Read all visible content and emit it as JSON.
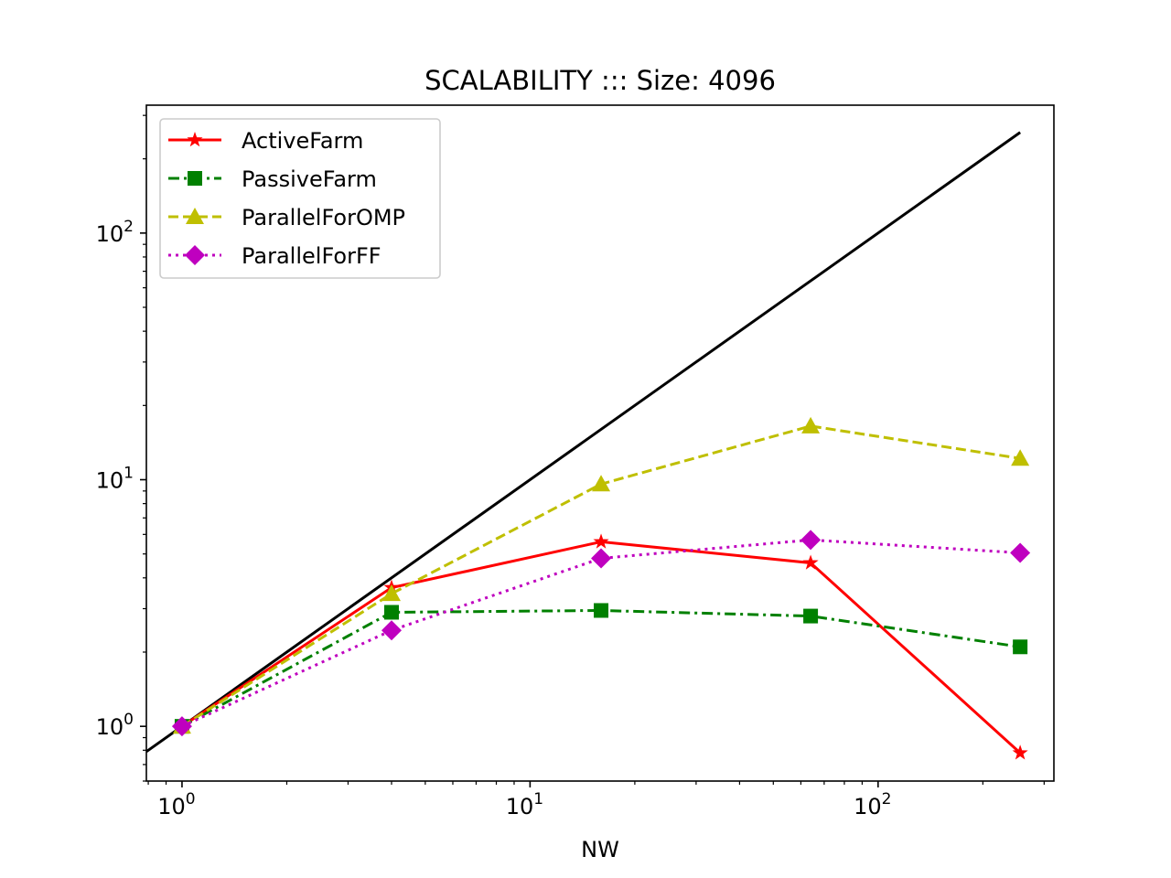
{
  "chart_data": {
    "type": "line",
    "title": "SCALABILITY ::: Size: 4096",
    "xlabel": "NW",
    "ylabel": "",
    "xscale": "log",
    "yscale": "log",
    "xlim": [
      0.79,
      320
    ],
    "ylim": [
      0.6,
      330
    ],
    "x_ticks": [
      {
        "value": 1,
        "base": "10",
        "exp": "0"
      },
      {
        "value": 10,
        "base": "10",
        "exp": "1"
      },
      {
        "value": 100,
        "base": "10",
        "exp": "2"
      }
    ],
    "y_ticks": [
      {
        "value": 1,
        "base": "10",
        "exp": "0"
      },
      {
        "value": 10,
        "base": "10",
        "exp": "1"
      },
      {
        "value": 100,
        "base": "10",
        "exp": "2"
      }
    ],
    "grid": false,
    "legend_position": "top-left",
    "ideal_line": {
      "x": [
        0.79,
        256
      ],
      "y": [
        0.79,
        256
      ],
      "color": "#000000"
    },
    "x": [
      1,
      4,
      16,
      64,
      256
    ],
    "series": [
      {
        "name": "ActiveFarm",
        "values": [
          1.0,
          3.65,
          5.6,
          4.6,
          0.78
        ],
        "color": "#ff0000",
        "dash": "solid",
        "marker": "star"
      },
      {
        "name": "PassiveFarm",
        "values": [
          1.0,
          2.9,
          2.95,
          2.8,
          2.1
        ],
        "color": "#008000",
        "dash": "dashdot",
        "marker": "square"
      },
      {
        "name": "ParallelForOMP",
        "values": [
          1.0,
          3.45,
          9.6,
          16.5,
          12.2
        ],
        "color": "#bfbf00",
        "dash": "dashed",
        "marker": "triangle"
      },
      {
        "name": "ParallelForFF",
        "values": [
          1.0,
          2.45,
          4.8,
          5.7,
          5.05
        ],
        "color": "#bf00bf",
        "dash": "dotted",
        "marker": "diamond"
      }
    ]
  }
}
